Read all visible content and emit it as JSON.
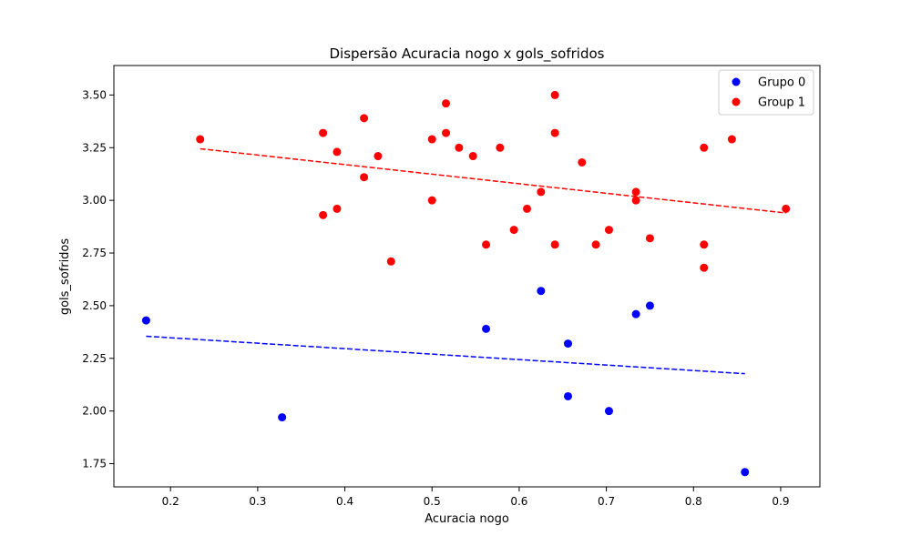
{
  "chart_data": {
    "type": "scatter",
    "title": "Dispersão Acuracia nogo x gols_sofridos",
    "xlabel": "Acuracia nogo",
    "ylabel": "gols_sofridos",
    "xlim": [
      0.135,
      0.945
    ],
    "ylim": [
      1.64,
      3.64
    ],
    "xticks": [
      0.2,
      0.3,
      0.4,
      0.5,
      0.6,
      0.7,
      0.8,
      0.9
    ],
    "xtick_labels": [
      "0.2",
      "0.3",
      "0.4",
      "0.5",
      "0.6",
      "0.7",
      "0.8",
      "0.9"
    ],
    "yticks": [
      1.75,
      2.0,
      2.25,
      2.5,
      2.75,
      3.0,
      3.25,
      3.5
    ],
    "ytick_labels": [
      "1.75",
      "2.00",
      "2.25",
      "2.50",
      "2.75",
      "3.00",
      "3.25",
      "3.50"
    ],
    "grid": false,
    "legend_position": "top-right",
    "series": [
      {
        "name": "Grupo 0",
        "color": "#0000ff",
        "points": [
          [
            0.172,
            2.43
          ],
          [
            0.328,
            1.97
          ],
          [
            0.562,
            2.39
          ],
          [
            0.625,
            2.57
          ],
          [
            0.656,
            2.32
          ],
          [
            0.656,
            2.07
          ],
          [
            0.703,
            2.0
          ],
          [
            0.734,
            2.46
          ],
          [
            0.75,
            2.5
          ],
          [
            0.859,
            1.71
          ]
        ],
        "trendline": [
          [
            0.172,
            2.355
          ],
          [
            0.859,
            2.177
          ]
        ]
      },
      {
        "name": "Group 1",
        "color": "#ff0000",
        "points": [
          [
            0.234,
            3.29
          ],
          [
            0.375,
            3.32
          ],
          [
            0.375,
            2.93
          ],
          [
            0.391,
            3.23
          ],
          [
            0.391,
            2.96
          ],
          [
            0.422,
            3.39
          ],
          [
            0.422,
            3.11
          ],
          [
            0.438,
            3.21
          ],
          [
            0.453,
            2.71
          ],
          [
            0.5,
            3.29
          ],
          [
            0.5,
            3.0
          ],
          [
            0.516,
            3.46
          ],
          [
            0.516,
            3.32
          ],
          [
            0.531,
            3.25
          ],
          [
            0.547,
            3.21
          ],
          [
            0.562,
            2.79
          ],
          [
            0.578,
            3.25
          ],
          [
            0.594,
            2.86
          ],
          [
            0.609,
            2.96
          ],
          [
            0.625,
            3.04
          ],
          [
            0.641,
            3.5
          ],
          [
            0.641,
            3.32
          ],
          [
            0.641,
            2.79
          ],
          [
            0.672,
            3.18
          ],
          [
            0.688,
            2.79
          ],
          [
            0.703,
            2.86
          ],
          [
            0.734,
            3.04
          ],
          [
            0.734,
            3.0
          ],
          [
            0.75,
            2.82
          ],
          [
            0.812,
            3.25
          ],
          [
            0.812,
            2.79
          ],
          [
            0.812,
            2.68
          ],
          [
            0.844,
            3.29
          ],
          [
            0.906,
            2.96
          ]
        ],
        "trendline": [
          [
            0.234,
            3.245
          ],
          [
            0.906,
            2.94
          ]
        ]
      }
    ]
  }
}
